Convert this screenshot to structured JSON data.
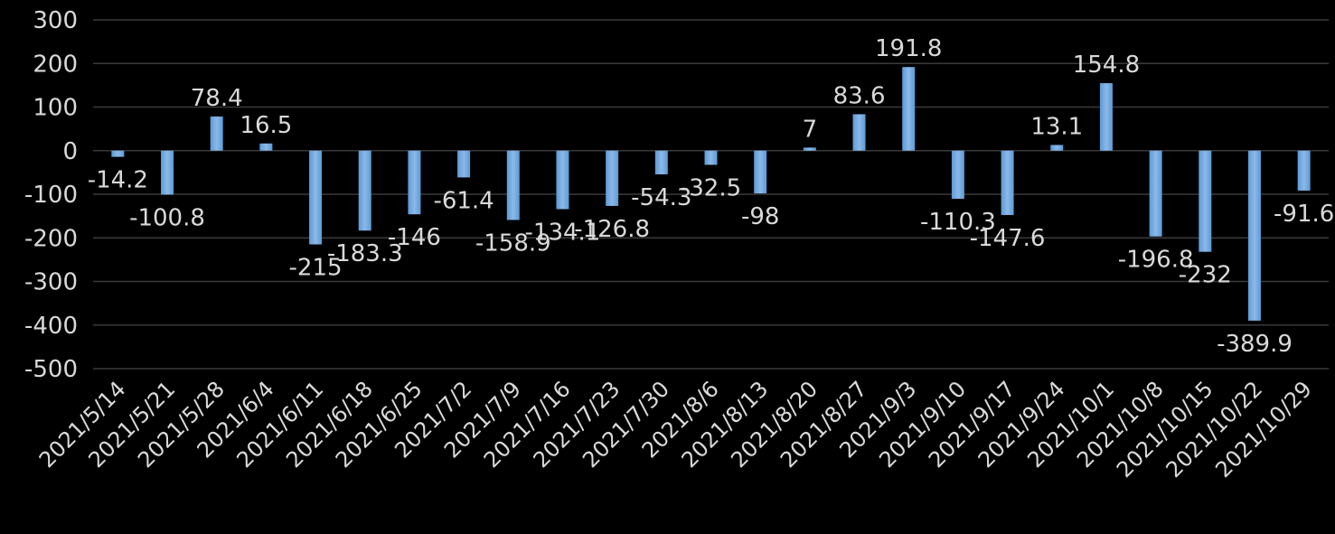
{
  "chart_data": {
    "type": "bar",
    "categories": [
      "2021/5/14",
      "2021/5/21",
      "2021/5/28",
      "2021/6/4",
      "2021/6/11",
      "2021/6/18",
      "2021/6/25",
      "2021/7/2",
      "2021/7/9",
      "2021/7/16",
      "2021/7/23",
      "2021/7/30",
      "2021/8/6",
      "2021/8/13",
      "2021/8/20",
      "2021/8/27",
      "2021/9/3",
      "2021/9/10",
      "2021/9/17",
      "2021/9/24",
      "2021/10/1",
      "2021/10/8",
      "2021/10/15",
      "2021/10/22",
      "2021/10/29"
    ],
    "values": [
      -14.2,
      -100.8,
      78.4,
      16.5,
      -215,
      -183.3,
      -146,
      -61.4,
      -158.9,
      -134.1,
      -126.8,
      -54.3,
      -32.5,
      -98,
      7,
      83.6,
      191.8,
      -110.3,
      -147.6,
      13.1,
      154.8,
      -196.8,
      -232,
      -389.9,
      -91.6
    ],
    "data_labels": [
      "-14.2",
      "-100.8",
      "78.4",
      "16.5",
      "-215",
      "-183.3",
      "-146",
      "-61.4",
      "-158.9",
      "-134.1",
      "-126.8",
      "-54.3",
      "-32.5",
      "-98",
      "7",
      "83.6",
      "191.8",
      "-110.3",
      "-147.6",
      "13.1",
      "154.8",
      "-196.8",
      "-232",
      "-389.9",
      "-91.6"
    ],
    "y_ticks": [
      "300",
      "200",
      "100",
      "0",
      "-100",
      "-200",
      "-300",
      "-400",
      "-500"
    ],
    "ylim": [
      -500,
      300
    ],
    "title": "",
    "xlabel": "",
    "ylabel": "",
    "grid": true,
    "legend": "none",
    "colors": {
      "bar": "#5b9bd5",
      "bar_highlight": "#8db8e8",
      "grid": "#3a3a3a",
      "text": "#d9d9d9",
      "background": "#000000"
    }
  }
}
